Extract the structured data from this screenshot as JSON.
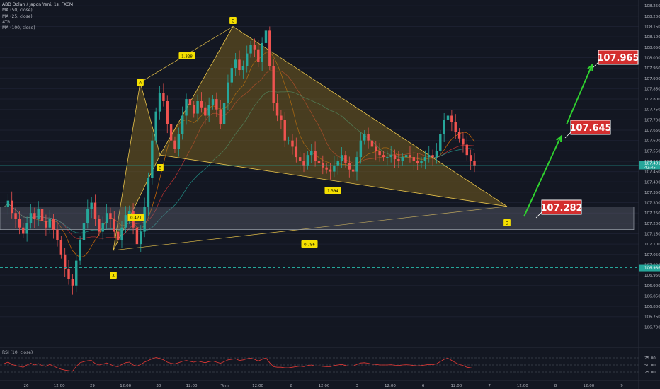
{
  "header": {
    "symbol": "ABD Doları / Japon Yeni, 1s, FXCM",
    "indicators": [
      "MA (50, close)",
      "MA (25, close)",
      "ATR",
      "MA (100, close)"
    ]
  },
  "rsi_label": "RSI (10, close)",
  "colors": {
    "background": "#131722",
    "up": "#26a69a",
    "down": "#ef5350",
    "pattern_fill": "#8a6d1e",
    "pattern_line": "#e8c34a",
    "zone": "#6f7480",
    "target_arrow": "#2fd12f",
    "target_box": "#d32f2f",
    "ma_fast": "#f57c00",
    "ma_mid": "#e53935",
    "ma_slow": "#26a69a",
    "rsi_line": "#e53935"
  },
  "chart_data": {
    "type": "candlestick",
    "title": "ABD Doları / Japon Yeni, 1s, FXCM",
    "x_tick_labels": [
      "26",
      "12:00",
      "29",
      "12:00",
      "30",
      "12:00",
      "Tem",
      "12:00",
      "2",
      "12:00",
      "3",
      "12:00",
      "6",
      "12:00",
      "7",
      "12:00",
      "8",
      "12:00",
      "9"
    ],
    "y_tick_labels": [
      "108.250",
      "108.200",
      "108.150",
      "108.100",
      "108.050",
      "108.000",
      "107.950",
      "107.900",
      "107.850",
      "107.800",
      "107.750",
      "107.700",
      "107.650",
      "107.600",
      "107.550",
      "107.500",
      "107.450",
      "107.400",
      "107.350",
      "107.300",
      "107.250",
      "107.200",
      "107.150",
      "107.100",
      "107.050",
      "107.000",
      "106.950",
      "106.900",
      "106.850",
      "106.800",
      "106.750",
      "106.700"
    ],
    "ylim": [
      106.68,
      108.28
    ],
    "current_price": "107.481",
    "countdown": "42:45",
    "dashed_level": "106.986",
    "xabcd_points": [
      {
        "label": "X",
        "price": 107.07
      },
      {
        "label": "A",
        "price": 107.88
      },
      {
        "label": "B",
        "price": 107.53
      },
      {
        "label": "C",
        "price": 108.15
      },
      {
        "label": "D",
        "price": 107.282
      }
    ],
    "ratios": [
      {
        "label": "1.328"
      },
      {
        "label": "0.421"
      },
      {
        "label": "1.394"
      },
      {
        "label": "0.786"
      }
    ],
    "zone": {
      "top": 107.28,
      "bottom": 107.17
    },
    "targets": [
      "107.282",
      "107.645",
      "107.965"
    ],
    "rsi_tick_labels": [
      "75.00",
      "50.00",
      "25.00"
    ],
    "rsi_range": [
      0,
      100
    ],
    "price_path": [
      107.28,
      107.31,
      107.25,
      107.22,
      107.18,
      107.15,
      107.2,
      107.25,
      107.22,
      107.27,
      107.21,
      107.18,
      107.22,
      107.17,
      107.12,
      107.05,
      106.98,
      106.93,
      106.9,
      107.02,
      107.12,
      107.2,
      107.27,
      107.3,
      107.22,
      107.16,
      107.2,
      107.25,
      107.22,
      107.16,
      107.12,
      107.18,
      107.24,
      107.26,
      107.18,
      107.1,
      107.16,
      107.28,
      107.42,
      107.6,
      107.74,
      107.83,
      107.79,
      107.68,
      107.6,
      107.56,
      107.63,
      107.72,
      107.8,
      107.77,
      107.73,
      107.79,
      107.76,
      107.72,
      107.77,
      107.8,
      107.75,
      107.68,
      107.78,
      107.88,
      107.95,
      107.99,
      107.94,
      107.96,
      108.02,
      108.06,
      108.04,
      107.98,
      108.07,
      108.13,
      107.96,
      107.78,
      107.72,
      107.7,
      107.6,
      107.6,
      107.57,
      107.52,
      107.5,
      107.48,
      107.53,
      107.55,
      107.5,
      107.49,
      107.47,
      107.46,
      107.45,
      107.48,
      107.5,
      107.53,
      107.49,
      107.46,
      107.45,
      107.52,
      107.6,
      107.63,
      107.6,
      107.57,
      107.55,
      107.53,
      107.52,
      107.52,
      107.53,
      107.51,
      107.5,
      107.52,
      107.53,
      107.52,
      107.5,
      107.49,
      107.5,
      107.52,
      107.53,
      107.52,
      107.55,
      107.63,
      107.7,
      107.72,
      107.69,
      107.64,
      107.61,
      107.58,
      107.53,
      107.5,
      107.48
    ],
    "rsi_path": [
      55,
      60,
      52,
      48,
      45,
      42,
      50,
      56,
      50,
      55,
      48,
      45,
      52,
      46,
      40,
      35,
      32,
      30,
      28,
      45,
      58,
      62,
      65,
      66,
      55,
      50,
      53,
      57,
      52,
      46,
      44,
      52,
      58,
      60,
      50,
      46,
      52,
      60,
      66,
      72,
      76,
      73,
      68,
      60,
      56,
      54,
      58,
      63,
      66,
      63,
      60,
      64,
      61,
      58,
      62,
      64,
      60,
      56,
      62,
      68,
      70,
      72,
      66,
      68,
      72,
      74,
      70,
      64,
      70,
      75,
      58,
      44,
      42,
      42,
      40,
      40,
      42,
      44,
      46,
      44,
      48,
      50,
      46,
      47,
      45,
      44,
      44,
      48,
      50,
      52,
      48,
      46,
      46,
      52,
      57,
      58,
      56,
      53,
      52,
      50,
      50,
      50,
      51,
      49,
      48,
      50,
      51,
      50,
      48,
      47,
      48,
      50,
      52,
      51,
      54,
      62,
      70,
      74,
      66,
      58,
      52,
      48,
      42,
      40,
      38
    ]
  }
}
